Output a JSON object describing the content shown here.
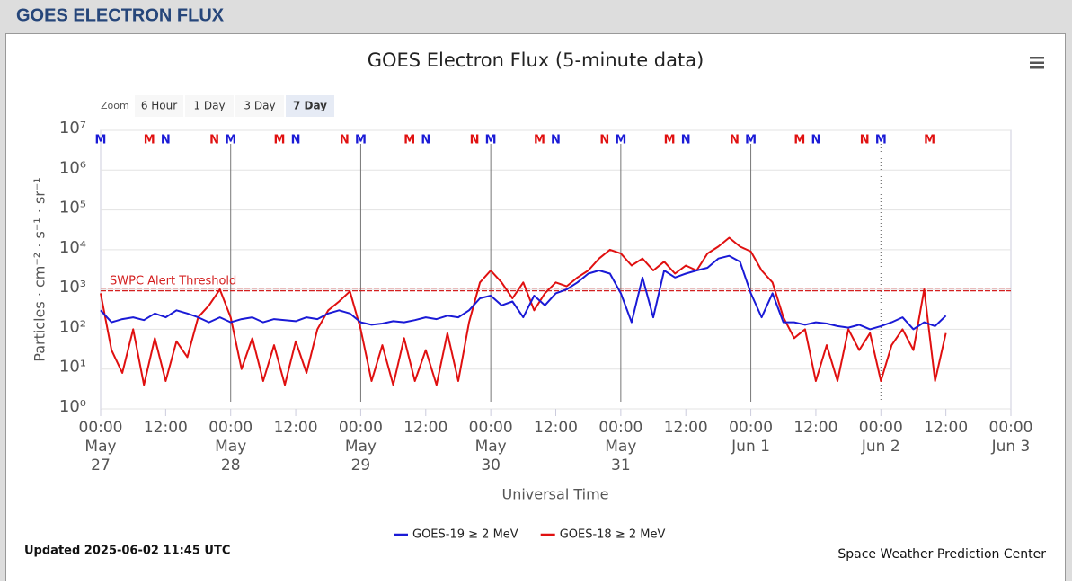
{
  "header": {
    "title": "GOES ELECTRON FLUX"
  },
  "chart_data": {
    "type": "line",
    "title": "GOES Electron Flux (5-minute data)",
    "zoom": {
      "label": "Zoom",
      "buttons": [
        "6 Hour",
        "1 Day",
        "3 Day",
        "7 Day"
      ],
      "selected": 3
    },
    "x_label": "Universal Time",
    "y_label": "Particles · cm⁻² · s⁻¹ · sr⁻¹",
    "log_y": true,
    "grid": true,
    "ylim": [
      1,
      10000000
    ],
    "yticks": [
      {
        "value": 1,
        "label": "10⁰"
      },
      {
        "value": 10,
        "label": "10¹"
      },
      {
        "value": 100,
        "label": "10²"
      },
      {
        "value": 1000,
        "label": "10³"
      },
      {
        "value": 10000,
        "label": "10⁴"
      },
      {
        "value": 100000,
        "label": "10⁵"
      },
      {
        "value": 1000000,
        "label": "10⁶"
      },
      {
        "value": 10000000,
        "label": "10⁷"
      }
    ],
    "xlim": [
      "May 27 00:00",
      "Jun 3 00:00"
    ],
    "xticks": [
      {
        "value": "May 27 00:00",
        "label": "00:00 May 27"
      },
      {
        "value": "May 27 12:00",
        "label": "12:00"
      },
      {
        "value": "May 28 00:00",
        "label": "00:00 May 28"
      },
      {
        "value": "May 28 12:00",
        "label": "12:00"
      },
      {
        "value": "May 29 00:00",
        "label": "00:00 May 29"
      },
      {
        "value": "May 29 12:00",
        "label": "12:00"
      },
      {
        "value": "May 30 00:00",
        "label": "00:00 May 30"
      },
      {
        "value": "May 30 12:00",
        "label": "12:00"
      },
      {
        "value": "May 31 00:00",
        "label": "00:00 May 31"
      },
      {
        "value": "May 31 12:00",
        "label": "12:00"
      },
      {
        "value": "Jun 1 00:00",
        "label": "00:00 Jun 1"
      },
      {
        "value": "Jun 1 12:00",
        "label": "12:00"
      },
      {
        "value": "Jun 2 00:00",
        "label": "00:00 Jun 2"
      },
      {
        "value": "Jun 2 12:00",
        "label": "12:00"
      },
      {
        "value": "Jun 3 00:00",
        "label": "00:00 Jun 3"
      }
    ],
    "threshold": {
      "value": 1000,
      "label": "SWPC Alert Threshold",
      "color": "#d42020"
    },
    "x": [
      "May 27 00:00",
      "May 27 02:00",
      "May 27 04:00",
      "May 27 06:00",
      "May 27 08:00",
      "May 27 10:00",
      "May 27 12:00",
      "May 27 14:00",
      "May 27 16:00",
      "May 27 18:00",
      "May 27 20:00",
      "May 27 22:00",
      "May 28 00:00",
      "May 28 02:00",
      "May 28 04:00",
      "May 28 06:00",
      "May 28 08:00",
      "May 28 10:00",
      "May 28 12:00",
      "May 28 14:00",
      "May 28 16:00",
      "May 28 18:00",
      "May 28 20:00",
      "May 28 22:00",
      "May 29 00:00",
      "May 29 02:00",
      "May 29 04:00",
      "May 29 06:00",
      "May 29 08:00",
      "May 29 10:00",
      "May 29 12:00",
      "May 29 14:00",
      "May 29 16:00",
      "May 29 18:00",
      "May 29 20:00",
      "May 29 22:00",
      "May 30 00:00",
      "May 30 02:00",
      "May 30 04:00",
      "May 30 06:00",
      "May 30 08:00",
      "May 30 10:00",
      "May 30 12:00",
      "May 30 14:00",
      "May 30 16:00",
      "May 30 18:00",
      "May 30 20:00",
      "May 30 22:00",
      "May 31 00:00",
      "May 31 02:00",
      "May 31 04:00",
      "May 31 06:00",
      "May 31 08:00",
      "May 31 10:00",
      "May 31 12:00",
      "May 31 14:00",
      "May 31 16:00",
      "May 31 18:00",
      "May 31 20:00",
      "May 31 22:00",
      "Jun 1 00:00",
      "Jun 1 02:00",
      "Jun 1 04:00",
      "Jun 1 06:00",
      "Jun 1 08:00",
      "Jun 1 10:00",
      "Jun 1 12:00",
      "Jun 1 14:00",
      "Jun 1 16:00",
      "Jun 1 18:00",
      "Jun 1 20:00",
      "Jun 1 22:00",
      "Jun 2 00:00",
      "Jun 2 02:00",
      "Jun 2 04:00",
      "Jun 2 06:00",
      "Jun 2 08:00",
      "Jun 2 10:00",
      "Jun 2 12:00"
    ],
    "series": [
      {
        "name": "GOES-19 ≥ 2 MeV",
        "color": "#1a1ad6",
        "values": [
          300,
          150,
          180,
          200,
          170,
          250,
          200,
          300,
          250,
          200,
          150,
          200,
          150,
          180,
          200,
          150,
          180,
          170,
          160,
          200,
          180,
          250,
          300,
          250,
          150,
          130,
          140,
          160,
          150,
          170,
          200,
          180,
          220,
          200,
          300,
          600,
          700,
          400,
          500,
          200,
          700,
          400,
          800,
          1000,
          1500,
          2500,
          3000,
          2500,
          800,
          150,
          2000,
          200,
          3000,
          2000,
          2500,
          3000,
          3500,
          6000,
          7000,
          5000,
          800,
          200,
          800,
          150,
          150,
          130,
          150,
          140,
          120,
          110,
          130,
          100,
          120,
          150,
          200,
          100,
          150,
          120,
          220
        ]
      },
      {
        "name": "GOES-18 ≥ 2 MeV",
        "color": "#e01010",
        "values": [
          800,
          30,
          8,
          100,
          4,
          60,
          5,
          50,
          20,
          200,
          400,
          1000,
          200,
          10,
          60,
          5,
          40,
          4,
          50,
          8,
          100,
          300,
          500,
          900,
          100,
          5,
          40,
          4,
          60,
          5,
          30,
          4,
          80,
          5,
          150,
          1500,
          3000,
          1500,
          600,
          1500,
          300,
          800,
          1500,
          1200,
          2000,
          3000,
          6000,
          10000,
          8000,
          4000,
          6000,
          3000,
          5000,
          2500,
          4000,
          3000,
          8000,
          12000,
          20000,
          12000,
          9000,
          3000,
          1500,
          200,
          60,
          100,
          5,
          40,
          5,
          100,
          30,
          80,
          5,
          40,
          100,
          30,
          1000,
          5,
          80
        ]
      }
    ],
    "markers": [
      {
        "color": "#1a1ad6",
        "items": [
          {
            "x": "May 27 00:00",
            "text": "M"
          },
          {
            "x": "May 27 12:00",
            "text": "N"
          },
          {
            "x": "May 28 00:00",
            "text": "M"
          },
          {
            "x": "May 28 12:00",
            "text": "N"
          },
          {
            "x": "May 29 00:00",
            "text": "M"
          },
          {
            "x": "May 29 12:00",
            "text": "N"
          },
          {
            "x": "May 30 00:00",
            "text": "M"
          },
          {
            "x": "May 30 12:00",
            "text": "N"
          },
          {
            "x": "May 31 00:00",
            "text": "M"
          },
          {
            "x": "May 31 12:00",
            "text": "N"
          },
          {
            "x": "Jun 1 00:00",
            "text": "M"
          },
          {
            "x": "Jun 1 12:00",
            "text": "N"
          },
          {
            "x": "Jun 2 00:00",
            "text": "M"
          }
        ]
      },
      {
        "color": "#e01010",
        "items": [
          {
            "x": "May 27 09:00",
            "text": "M"
          },
          {
            "x": "May 27 21:00",
            "text": "N"
          },
          {
            "x": "May 28 09:00",
            "text": "M"
          },
          {
            "x": "May 28 21:00",
            "text": "N"
          },
          {
            "x": "May 29 09:00",
            "text": "M"
          },
          {
            "x": "May 29 21:00",
            "text": "N"
          },
          {
            "x": "May 30 09:00",
            "text": "M"
          },
          {
            "x": "May 30 21:00",
            "text": "N"
          },
          {
            "x": "May 31 09:00",
            "text": "M"
          },
          {
            "x": "May 31 21:00",
            "text": "N"
          },
          {
            "x": "Jun 1 09:00",
            "text": "M"
          },
          {
            "x": "Jun 1 21:00",
            "text": "N"
          },
          {
            "x": "Jun 2 09:00",
            "text": "M"
          }
        ]
      }
    ],
    "updated": "Updated 2025-06-02 11:45 UTC",
    "credit": "Space Weather Prediction Center"
  }
}
